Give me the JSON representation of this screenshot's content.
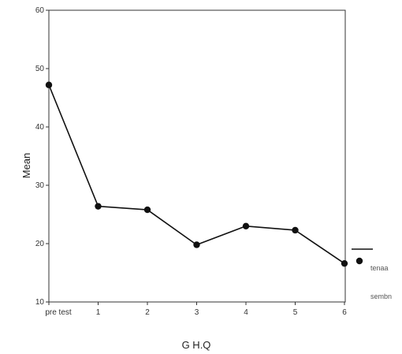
{
  "chart_data": {
    "type": "line",
    "title": "",
    "xlabel": "G H.Q",
    "ylabel": "Mean",
    "categories": [
      "pre test",
      "1",
      "2",
      "3",
      "4",
      "5",
      "6"
    ],
    "series": [
      {
        "name": "",
        "values": [
          47.2,
          26.4,
          25.8,
          19.8,
          23.0,
          22.3,
          16.6
        ]
      }
    ],
    "ylim": [
      10,
      60
    ],
    "yticks": [
      10,
      20,
      30,
      40,
      50,
      60
    ],
    "grid": false,
    "legend": {
      "placement": "right",
      "entries": [
        {
          "label": "tenaa",
          "marker": "line"
        },
        {
          "label": "sembn",
          "marker": "dot"
        }
      ]
    },
    "colors": {
      "line": "#111111",
      "marker": "#111111",
      "frame": "#333333"
    }
  }
}
